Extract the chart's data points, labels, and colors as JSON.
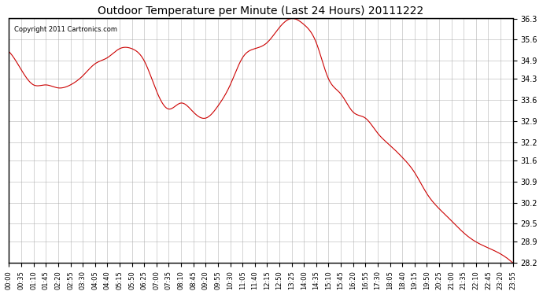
{
  "title": "Outdoor Temperature per Minute (Last 24 Hours) 20111222",
  "copyright_text": "Copyright 2011 Cartronics.com",
  "line_color": "#cc0000",
  "background_color": "#ffffff",
  "plot_bg_color": "#ffffff",
  "grid_color": "#aaaaaa",
  "ylim": [
    28.2,
    36.3
  ],
  "yticks": [
    28.2,
    28.9,
    29.5,
    30.2,
    30.9,
    31.6,
    32.2,
    32.9,
    33.6,
    34.3,
    34.9,
    35.6,
    36.3
  ],
  "x_tick_labels": [
    "00:00",
    "00:35",
    "01:10",
    "01:45",
    "02:20",
    "02:55",
    "03:30",
    "04:05",
    "04:40",
    "05:15",
    "05:50",
    "06:25",
    "07:00",
    "07:35",
    "08:10",
    "08:45",
    "09:20",
    "09:55",
    "10:30",
    "11:05",
    "11:40",
    "12:15",
    "12:50",
    "13:25",
    "14:00",
    "14:35",
    "15:10",
    "15:45",
    "16:20",
    "16:55",
    "17:30",
    "18:05",
    "18:40",
    "19:15",
    "19:50",
    "20:25",
    "21:00",
    "21:35",
    "22:10",
    "22:45",
    "23:20",
    "23:55"
  ],
  "key_times": [
    0,
    35,
    70,
    105,
    140,
    175,
    210,
    245,
    280,
    315,
    350,
    385,
    420,
    455,
    490,
    525,
    560,
    595,
    630,
    665,
    700,
    735,
    770,
    805,
    840,
    875,
    910,
    945,
    980,
    1015,
    1050,
    1085,
    1120,
    1155,
    1190,
    1225,
    1260,
    1295,
    1330,
    1365,
    1400,
    1435
  ],
  "key_values": [
    35.2,
    34.6,
    34.1,
    34.1,
    34.0,
    34.1,
    34.4,
    34.8,
    35.0,
    35.3,
    35.3,
    34.9,
    33.9,
    33.3,
    33.5,
    33.2,
    33.0,
    33.4,
    34.1,
    35.0,
    35.3,
    35.5,
    36.0,
    36.3,
    36.1,
    35.5,
    34.3,
    33.8,
    33.2,
    33.0,
    32.5,
    32.1,
    31.7,
    31.2,
    30.5,
    30.0,
    29.6,
    29.2,
    28.9,
    28.7,
    28.5,
    28.2
  ]
}
